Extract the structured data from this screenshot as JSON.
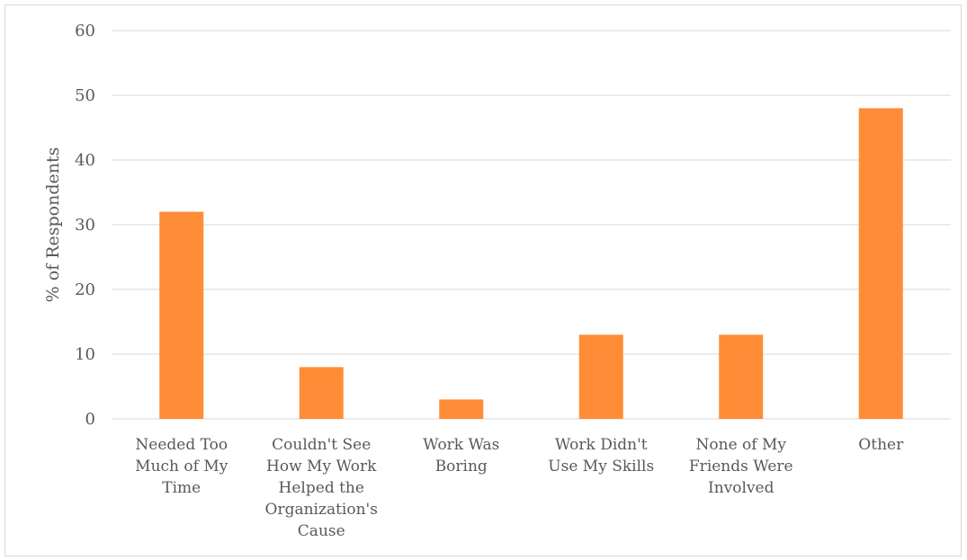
{
  "chart_data": {
    "type": "bar",
    "title": "",
    "xlabel": "",
    "ylabel": "% of Respondents",
    "categories": [
      [
        "Needed Too",
        "Much of My",
        "Time"
      ],
      [
        "Couldn't See",
        "How My Work",
        "Helped the",
        "Organization's",
        "Cause"
      ],
      [
        "Work Was",
        "Boring"
      ],
      [
        "Work Didn't",
        "Use My Skills"
      ],
      [
        "None of My",
        "Friends Were",
        "Involved"
      ],
      [
        "Other"
      ]
    ],
    "values": [
      32,
      8,
      3,
      13,
      13,
      48
    ],
    "ylim": [
      0,
      60
    ],
    "yticks": [
      0,
      10,
      20,
      30,
      40,
      50,
      60
    ],
    "grid": true,
    "legend": "none",
    "bar_color": "#FF8C37",
    "grid_color": "#d9d9d9"
  }
}
